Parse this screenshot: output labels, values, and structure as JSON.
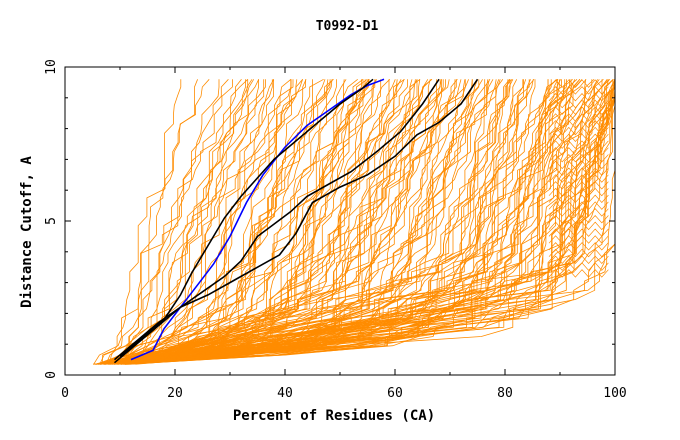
{
  "chart_data": {
    "type": "line",
    "title": "T0992-D1",
    "xlabel": "Percent of Residues (CA)",
    "ylabel": "Distance Cutoff, A",
    "xlim": [
      0,
      100
    ],
    "ylim": [
      0,
      10
    ],
    "x_ticks": [
      "0",
      "20",
      "40",
      "60",
      "80",
      "100"
    ],
    "y_ticks": [
      "0",
      "5",
      "10"
    ],
    "colors": {
      "bundle": "#ff8c00",
      "highlight_dark": "#000000",
      "highlight_blue": "#0000ff"
    },
    "grid": false,
    "series": [
      {
        "role": "highlight_blue",
        "x": [
          12,
          16,
          18,
          21,
          24,
          27,
          30,
          33,
          36,
          40,
          44,
          48,
          52,
          55,
          58
        ],
        "y": [
          0.5,
          0.8,
          1.5,
          2.2,
          2.9,
          3.6,
          4.5,
          5.6,
          6.5,
          7.4,
          8.1,
          8.6,
          9.1,
          9.4,
          9.6
        ]
      },
      {
        "role": "highlight_dark",
        "x": [
          10,
          14,
          18,
          21,
          23,
          26,
          29,
          32,
          35,
          38,
          42,
          46,
          50,
          54,
          56
        ],
        "y": [
          0.6,
          1.2,
          1.8,
          2.6,
          3.3,
          4.2,
          5.1,
          5.8,
          6.4,
          7.0,
          7.6,
          8.2,
          8.8,
          9.3,
          9.6
        ]
      },
      {
        "role": "highlight_dark",
        "x": [
          9,
          13,
          17,
          21,
          25,
          29,
          32,
          35,
          38,
          41,
          44,
          48,
          52,
          57,
          61,
          65,
          68
        ],
        "y": [
          0.4,
          1.0,
          1.6,
          2.2,
          2.7,
          3.2,
          3.7,
          4.5,
          4.9,
          5.3,
          5.8,
          6.2,
          6.6,
          7.3,
          7.9,
          8.8,
          9.6
        ]
      },
      {
        "role": "highlight_dark",
        "x": [
          9,
          13,
          17,
          21,
          26,
          31,
          35,
          39,
          42,
          45,
          50,
          55,
          60,
          64,
          68,
          72,
          75
        ],
        "y": [
          0.5,
          1.1,
          1.7,
          2.2,
          2.6,
          3.1,
          3.5,
          3.9,
          4.6,
          5.6,
          6.1,
          6.5,
          7.1,
          7.8,
          8.2,
          8.8,
          9.6
        ]
      }
    ]
  }
}
